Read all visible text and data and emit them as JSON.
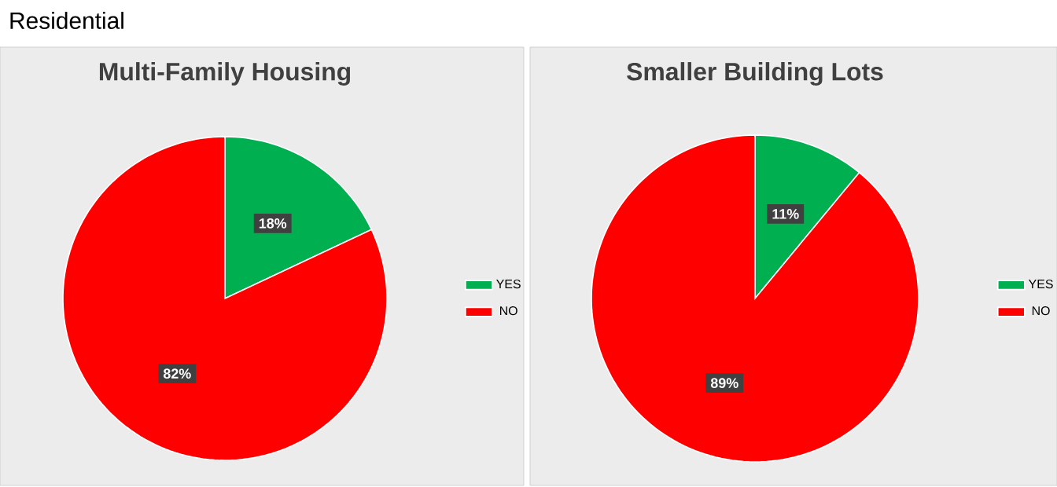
{
  "chart_data": [
    {
      "type": "pie",
      "title": "Multi-Family Housing",
      "categories": [
        "YES",
        "NO"
      ],
      "values": [
        18,
        82
      ],
      "value_labels": [
        "18%",
        "82%"
      ],
      "colors": [
        "#00b050",
        "#ff0000"
      ],
      "legend": "right",
      "annotations": [
        "Residential"
      ]
    },
    {
      "type": "pie",
      "title": "Smaller Building Lots",
      "categories": [
        "YES",
        "NO"
      ],
      "values": [
        11,
        89
      ],
      "value_labels": [
        "11%",
        "89%"
      ],
      "colors": [
        "#00b050",
        "#ff0000"
      ],
      "legend": "right"
    }
  ]
}
